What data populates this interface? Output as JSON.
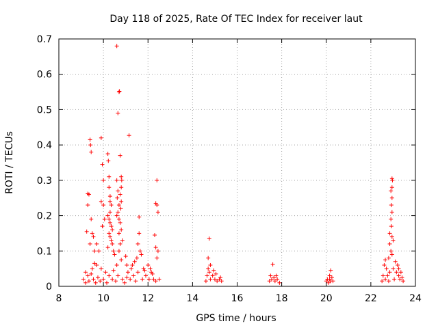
{
  "chart_data": {
    "type": "scatter",
    "title": "Day 118 of 2025, Rate Of TEC Index for receiver laut",
    "xlabel": "GPS time / hours",
    "ylabel": "ROTI / TECUs",
    "xlim": [
      8,
      24
    ],
    "ylim": [
      0,
      0.7
    ],
    "xticks": [
      8,
      10,
      12,
      14,
      16,
      18,
      20,
      22,
      24
    ],
    "yticks": [
      0,
      0.1,
      0.2,
      0.3,
      0.4,
      0.5,
      0.6,
      0.7
    ],
    "grid": true,
    "marker": "+",
    "color": "#ff0000",
    "series": [
      {
        "name": "ROTI",
        "points": [
          [
            9.4,
            0.415
          ],
          [
            9.42,
            0.4
          ],
          [
            9.45,
            0.38
          ],
          [
            9.3,
            0.262
          ],
          [
            9.35,
            0.26
          ],
          [
            9.3,
            0.23
          ],
          [
            9.45,
            0.19
          ],
          [
            9.5,
            0.15
          ],
          [
            9.55,
            0.14
          ],
          [
            9.4,
            0.12
          ],
          [
            9.25,
            0.155
          ],
          [
            9.6,
            0.1
          ],
          [
            9.7,
            0.12
          ],
          [
            9.8,
            0.1
          ],
          [
            9.9,
            0.42
          ],
          [
            9.95,
            0.345
          ],
          [
            10.0,
            0.3
          ],
          [
            10.0,
            0.23
          ],
          [
            10.05,
            0.19
          ],
          [
            9.9,
            0.24
          ],
          [
            9.95,
            0.17
          ],
          [
            10.2,
            0.375
          ],
          [
            10.22,
            0.355
          ],
          [
            10.25,
            0.31
          ],
          [
            10.25,
            0.28
          ],
          [
            10.3,
            0.255
          ],
          [
            10.3,
            0.24
          ],
          [
            10.35,
            0.23
          ],
          [
            10.3,
            0.21
          ],
          [
            10.2,
            0.2
          ],
          [
            10.25,
            0.19
          ],
          [
            10.3,
            0.18
          ],
          [
            10.35,
            0.17
          ],
          [
            10.4,
            0.16
          ],
          [
            10.25,
            0.15
          ],
          [
            10.3,
            0.14
          ],
          [
            10.35,
            0.13
          ],
          [
            10.4,
            0.12
          ],
          [
            10.2,
            0.11
          ],
          [
            10.45,
            0.1
          ],
          [
            10.5,
            0.09
          ],
          [
            10.6,
            0.68
          ],
          [
            10.65,
            0.49
          ],
          [
            10.7,
            0.55
          ],
          [
            10.72,
            0.552
          ],
          [
            10.6,
            0.3
          ],
          [
            10.65,
            0.27
          ],
          [
            10.62,
            0.25
          ],
          [
            10.7,
            0.23
          ],
          [
            10.65,
            0.21
          ],
          [
            10.6,
            0.2
          ],
          [
            10.7,
            0.19
          ],
          [
            10.75,
            0.37
          ],
          [
            10.8,
            0.31
          ],
          [
            10.82,
            0.3
          ],
          [
            10.8,
            0.28
          ],
          [
            10.75,
            0.26
          ],
          [
            10.8,
            0.24
          ],
          [
            10.78,
            0.22
          ],
          [
            10.75,
            0.18
          ],
          [
            10.8,
            0.16
          ],
          [
            10.7,
            0.15
          ],
          [
            10.85,
            0.13
          ],
          [
            10.75,
            0.12
          ],
          [
            10.7,
            0.1
          ],
          [
            10.8,
            0.075
          ],
          [
            11.15,
            0.427
          ],
          [
            11.0,
            0.085
          ],
          [
            11.05,
            0.06
          ],
          [
            11.6,
            0.196
          ],
          [
            11.6,
            0.15
          ],
          [
            11.55,
            0.12
          ],
          [
            11.65,
            0.1
          ],
          [
            11.7,
            0.09
          ],
          [
            11.5,
            0.08
          ],
          [
            12.4,
            0.3
          ],
          [
            12.35,
            0.235
          ],
          [
            12.4,
            0.23
          ],
          [
            12.45,
            0.21
          ],
          [
            12.3,
            0.145
          ],
          [
            12.35,
            0.11
          ],
          [
            12.45,
            0.1
          ],
          [
            12.4,
            0.08
          ],
          [
            11.4,
            0.07
          ],
          [
            11.3,
            0.06
          ],
          [
            11.8,
            0.05
          ],
          [
            12.0,
            0.06
          ],
          [
            9.2,
            0.04
          ],
          [
            9.3,
            0.03
          ],
          [
            9.5,
            0.05
          ],
          [
            9.7,
            0.06
          ],
          [
            9.9,
            0.05
          ],
          [
            10.1,
            0.04
          ],
          [
            9.1,
            0.02
          ],
          [
            9.2,
            0.01
          ],
          [
            9.35,
            0.015
          ],
          [
            9.55,
            0.02
          ],
          [
            9.65,
            0.01
          ],
          [
            9.75,
            0.025
          ],
          [
            9.85,
            0.015
          ],
          [
            10.0,
            0.02
          ],
          [
            10.15,
            0.01
          ],
          [
            10.25,
            0.03
          ],
          [
            10.4,
            0.02
          ],
          [
            10.55,
            0.015
          ],
          [
            10.65,
            0.03
          ],
          [
            10.85,
            0.02
          ],
          [
            10.95,
            0.01
          ],
          [
            11.05,
            0.025
          ],
          [
            11.2,
            0.02
          ],
          [
            11.35,
            0.03
          ],
          [
            11.45,
            0.015
          ],
          [
            11.55,
            0.04
          ],
          [
            11.75,
            0.02
          ],
          [
            11.9,
            0.03
          ],
          [
            12.05,
            0.02
          ],
          [
            12.15,
            0.04
          ],
          [
            12.25,
            0.02
          ],
          [
            12.35,
            0.015
          ],
          [
            12.5,
            0.02
          ],
          [
            11.1,
            0.04
          ],
          [
            11.25,
            0.05
          ],
          [
            11.85,
            0.045
          ],
          [
            12.1,
            0.05
          ],
          [
            12.2,
            0.035
          ],
          [
            9.45,
            0.035
          ],
          [
            10.45,
            0.045
          ],
          [
            10.6,
            0.06
          ],
          [
            9.6,
            0.065
          ],
          [
            14.75,
            0.135
          ],
          [
            14.7,
            0.08
          ],
          [
            14.8,
            0.06
          ],
          [
            14.7,
            0.05
          ],
          [
            14.75,
            0.04
          ],
          [
            14.65,
            0.03
          ],
          [
            14.8,
            0.02
          ],
          [
            14.9,
            0.03
          ],
          [
            15.0,
            0.02
          ],
          [
            15.1,
            0.015
          ],
          [
            15.2,
            0.02
          ],
          [
            15.3,
            0.015
          ],
          [
            15.05,
            0.035
          ],
          [
            14.95,
            0.045
          ],
          [
            14.6,
            0.015
          ],
          [
            15.25,
            0.025
          ],
          [
            17.6,
            0.062
          ],
          [
            17.5,
            0.03
          ],
          [
            17.55,
            0.02
          ],
          [
            17.65,
            0.025
          ],
          [
            17.7,
            0.015
          ],
          [
            17.8,
            0.02
          ],
          [
            17.9,
            0.01
          ],
          [
            17.45,
            0.015
          ],
          [
            17.75,
            0.03
          ],
          [
            20.2,
            0.045
          ],
          [
            20.0,
            0.015
          ],
          [
            20.05,
            0.02
          ],
          [
            20.1,
            0.01
          ],
          [
            20.15,
            0.02
          ],
          [
            20.2,
            0.015
          ],
          [
            20.25,
            0.025
          ],
          [
            20.3,
            0.015
          ],
          [
            20.15,
            0.03
          ],
          [
            22.95,
            0.305
          ],
          [
            22.97,
            0.3
          ],
          [
            22.95,
            0.28
          ],
          [
            22.9,
            0.27
          ],
          [
            22.95,
            0.25
          ],
          [
            22.92,
            0.23
          ],
          [
            22.95,
            0.21
          ],
          [
            22.9,
            0.19
          ],
          [
            22.92,
            0.17
          ],
          [
            22.85,
            0.15
          ],
          [
            22.95,
            0.14
          ],
          [
            23.0,
            0.13
          ],
          [
            22.85,
            0.12
          ],
          [
            22.9,
            0.1
          ],
          [
            22.95,
            0.09
          ],
          [
            22.8,
            0.08
          ],
          [
            23.1,
            0.07
          ],
          [
            22.65,
            0.075
          ],
          [
            22.6,
            0.06
          ],
          [
            22.7,
            0.05
          ],
          [
            22.75,
            0.03
          ],
          [
            22.85,
            0.04
          ],
          [
            22.55,
            0.03
          ],
          [
            22.65,
            0.02
          ],
          [
            23.0,
            0.05
          ],
          [
            23.15,
            0.04
          ],
          [
            23.2,
            0.06
          ],
          [
            23.25,
            0.03
          ],
          [
            23.3,
            0.02
          ],
          [
            23.4,
            0.025
          ],
          [
            23.45,
            0.015
          ],
          [
            23.35,
            0.04
          ],
          [
            23.05,
            0.02
          ],
          [
            22.5,
            0.015
          ],
          [
            23.25,
            0.05
          ],
          [
            22.8,
            0.015
          ]
        ]
      }
    ]
  }
}
